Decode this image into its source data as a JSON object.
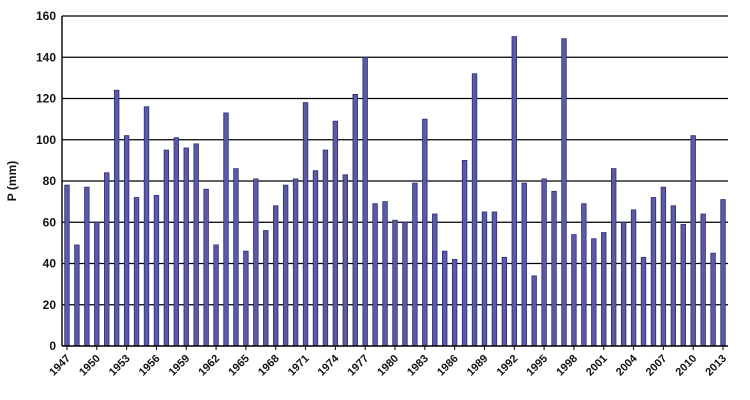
{
  "chart_data": {
    "type": "bar",
    "title": "",
    "xlabel": "",
    "ylabel": "P (mm)",
    "ylim": [
      0,
      160
    ],
    "yticks": [
      0,
      20,
      40,
      60,
      80,
      100,
      120,
      140,
      160
    ],
    "grid": true,
    "legend": "none",
    "bar_color": "#5a5aa6",
    "bar_edge_color": "#2e2e72",
    "categories": [
      "1947",
      "1948",
      "1949",
      "1950",
      "1951",
      "1952",
      "1953",
      "1954",
      "1955",
      "1956",
      "1957",
      "1958",
      "1959",
      "1960",
      "1961",
      "1962",
      "1963",
      "1964",
      "1965",
      "1966",
      "1967",
      "1968",
      "1969",
      "1970",
      "1971",
      "1972",
      "1973",
      "1974",
      "1975",
      "1976",
      "1977",
      "1978",
      "1979",
      "1980",
      "1981",
      "1982",
      "1983",
      "1984",
      "1985",
      "1986",
      "1987",
      "1988",
      "1989",
      "1990",
      "1991",
      "1992",
      "1993",
      "1994",
      "1995",
      "1996",
      "1997",
      "1998",
      "1999",
      "2000",
      "2001",
      "2002",
      "2003",
      "2004",
      "2005",
      "2006",
      "2007",
      "2008",
      "2009",
      "2010",
      "2011",
      "2012",
      "2013"
    ],
    "values": [
      78,
      49,
      77,
      60,
      84,
      124,
      102,
      72,
      116,
      73,
      95,
      101,
      96,
      98,
      76,
      49,
      113,
      86,
      46,
      81,
      56,
      68,
      78,
      81,
      118,
      85,
      95,
      109,
      83,
      122,
      140,
      69,
      70,
      61,
      60,
      79,
      110,
      64,
      46,
      42,
      90,
      132,
      65,
      65,
      43,
      150,
      79,
      34,
      81,
      75,
      149,
      54,
      69,
      52,
      55,
      86,
      60,
      66,
      43,
      72,
      77,
      68,
      59,
      102,
      64,
      45,
      71
    ],
    "xtick_labels": [
      "1947",
      "1950",
      "1953",
      "1956",
      "1959",
      "1962",
      "1965",
      "1968",
      "1971",
      "1974",
      "1977",
      "1980",
      "1983",
      "1986",
      "1989",
      "1992",
      "1995",
      "1998",
      "2001",
      "2004",
      "2007",
      "2010",
      "2013"
    ]
  }
}
